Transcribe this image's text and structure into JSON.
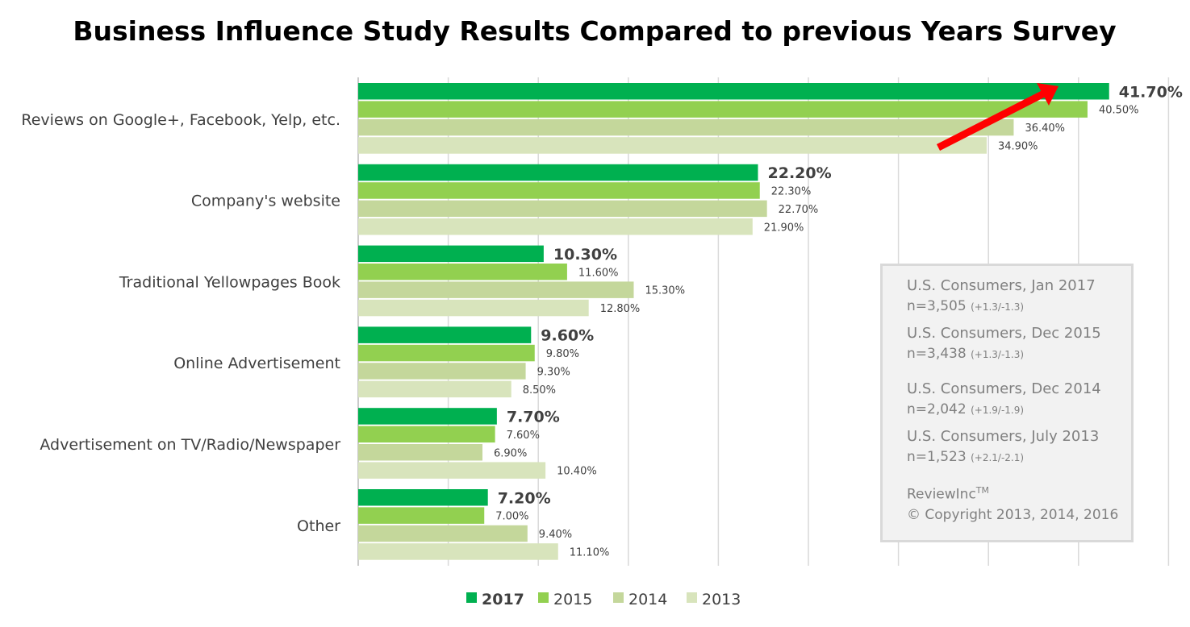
{
  "chart_data": {
    "type": "bar",
    "orientation": "horizontal",
    "title": "Business Influence Study Results Compared to previous Years Survey",
    "categories": [
      "Reviews on Google+, Facebook, Yelp, etc.",
      "Company's website",
      "Traditional Yellowpages Book",
      "Online Advertisement",
      "Advertisement on TV/Radio/Newspaper",
      "Other"
    ],
    "series": [
      {
        "name": "2017",
        "color": "#00b050",
        "values": [
          41.7,
          22.2,
          10.3,
          9.6,
          7.7,
          7.2
        ],
        "labels": [
          "41.70%",
          "22.20%",
          "10.30%",
          "9.60%",
          "7.70%",
          "7.20%"
        ]
      },
      {
        "name": "2015",
        "color": "#92d050",
        "values": [
          40.5,
          22.3,
          11.6,
          9.8,
          7.6,
          7.0
        ],
        "labels": [
          "40.50%",
          "22.30%",
          "11.60%",
          "9.80%",
          "7.60%",
          "7.00%"
        ]
      },
      {
        "name": "2014",
        "color": "#c4d79b",
        "values": [
          36.4,
          22.7,
          15.3,
          9.3,
          6.9,
          9.4
        ],
        "labels": [
          "36.40%",
          "22.70%",
          "15.30%",
          "9.30%",
          "6.90%",
          "9.40%"
        ]
      },
      {
        "name": "2013",
        "color": "#d8e4bc",
        "values": [
          34.9,
          21.9,
          12.8,
          8.5,
          10.4,
          11.1
        ],
        "labels": [
          "34.90%",
          "21.90%",
          "12.80%",
          "8.50%",
          "10.40%",
          "11.10%"
        ]
      }
    ],
    "xlim": [
      0,
      45
    ],
    "grid": true,
    "legend_position": "bottom",
    "annotation": "red-arrow-upward-trend"
  },
  "info_box": {
    "entries": [
      {
        "title": "U.S. Consumers, Jan 2017",
        "n": "n=3,505",
        "margin": "(+1.3/-1.3)"
      },
      {
        "title": "U.S. Consumers, Dec 2015",
        "n": "n=3,438",
        "margin": "(+1.3/-1.3)"
      },
      {
        "title": "U.S. Consumers, Dec 2014",
        "n": "n=2,042",
        "margin": "(+1.9/-1.9)"
      },
      {
        "title": "U.S. Consumers, July 2013",
        "n": "n=1,523",
        "margin": "(+2.1/-2.1)"
      }
    ],
    "brand": "ReviewInc",
    "trademark": "TM",
    "copyright": "© Copyright 2013, 2014, 2016"
  }
}
